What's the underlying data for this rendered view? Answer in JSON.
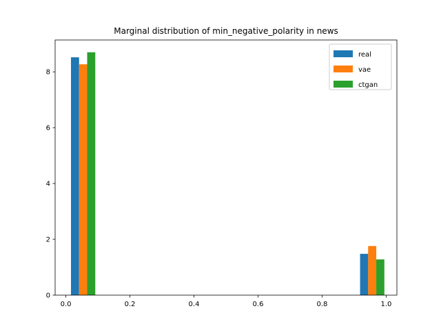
{
  "chart_data": {
    "type": "bar",
    "title": "Marginal distribution of min_negative_polarity in news",
    "xlabel": "",
    "ylabel": "",
    "xlim": [
      -0.0335,
      1.0335
    ],
    "ylim": [
      0,
      9.14
    ],
    "xticks": [
      0.0,
      0.2,
      0.4,
      0.6,
      0.8,
      1.0
    ],
    "xtick_labels": [
      "0.0",
      "0.2",
      "0.4",
      "0.6",
      "0.8",
      "1.0"
    ],
    "yticks": [
      0,
      2,
      4,
      6,
      8
    ],
    "ytick_labels": [
      "0",
      "2",
      "4",
      "6",
      "8"
    ],
    "legend_position": "top-right",
    "bar_width": 0.0253,
    "series": [
      {
        "name": "real",
        "color": "#1f77b4",
        "bars": [
          {
            "x": 0.0286,
            "value": 8.52
          },
          {
            "x": 0.9312,
            "value": 1.48
          }
        ]
      },
      {
        "name": "vae",
        "color": "#ff7f0e",
        "bars": [
          {
            "x": 0.0539,
            "value": 8.27
          },
          {
            "x": 0.9564,
            "value": 1.76
          }
        ]
      },
      {
        "name": "ctgan",
        "color": "#2ca02c",
        "bars": [
          {
            "x": 0.0792,
            "value": 8.7
          },
          {
            "x": 0.9817,
            "value": 1.28
          }
        ]
      }
    ]
  }
}
